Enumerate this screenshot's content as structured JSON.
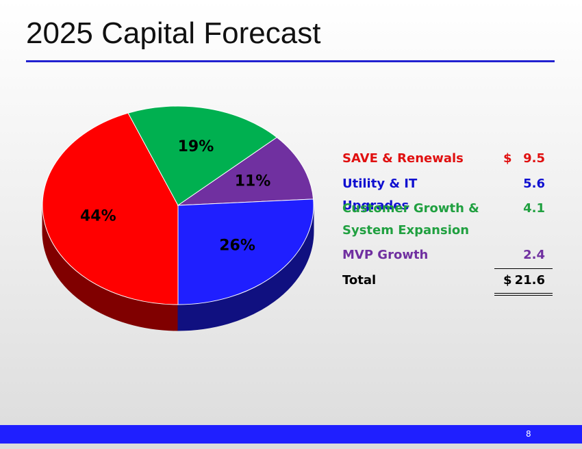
{
  "header": {
    "title": "2025 Capital Forecast"
  },
  "chart_data": {
    "type": "pie",
    "values": [
      44,
      19,
      11,
      26
    ],
    "value_labels": [
      "44%",
      "19%",
      "11%",
      "26%"
    ],
    "colors": [
      "#ff0000",
      "#00b050",
      "#7030a0",
      "#1f1fff"
    ]
  },
  "table": {
    "rows": [
      {
        "label": "SAVE & Renewals",
        "currency": "$",
        "amount": 9.5,
        "color": "#e01010"
      },
      {
        "label": "Utility & IT Upgrades",
        "amount": 5.6,
        "color": "#1010d0"
      },
      {
        "label": "Customer Growth & System Expansion",
        "amount": 4.1,
        "color": "#20a040"
      },
      {
        "label": "MVP Growth",
        "amount": 2.4,
        "color": "#7030a0"
      },
      {
        "label": "Total",
        "currency": "$",
        "amount": 21.6,
        "color": "#000000"
      }
    ]
  },
  "footer": {
    "page": "8"
  }
}
